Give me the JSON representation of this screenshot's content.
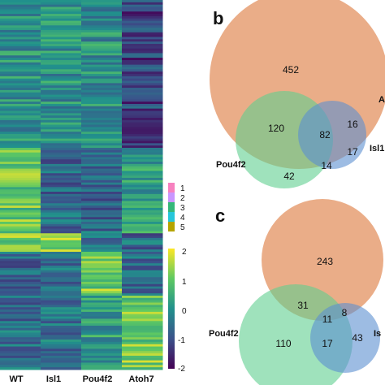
{
  "heatmap": {
    "columns": [
      "WT",
      "Isl1",
      "Pou4f2",
      "Atoh7"
    ],
    "clusters": [
      {
        "label": "1",
        "color": "#f781bf"
      },
      {
        "label": "2",
        "color": "#c996ff"
      },
      {
        "label": "3",
        "color": "#35b779"
      },
      {
        "label": "4",
        "color": "#26c6da"
      },
      {
        "label": "5",
        "color": "#b5a400"
      }
    ],
    "colorbar": {
      "ticks": [
        "2",
        "1",
        "0",
        "-1",
        "-2"
      ],
      "range": [
        -2,
        2
      ]
    }
  },
  "panel_b": {
    "letter": "b",
    "labels": {
      "pou4f2": "Pou4f2",
      "isl1": "Isl1",
      "atoh7": "A"
    },
    "regions": {
      "atoh7_only": "452",
      "atoh7_pou4f2": "120",
      "all_three": "82",
      "atoh7_isl1": "16",
      "isl1_only": "17",
      "pou4f2_isl1": "14",
      "pou4f2_only": "42"
    }
  },
  "panel_c": {
    "letter": "c",
    "labels": {
      "pou4f2": "Pou4f2",
      "isl1": "Is"
    },
    "regions": {
      "atoh7_only": "243",
      "atoh7_pou4f2": "31",
      "all_three": "11",
      "atoh7_isl1": "8",
      "isl1_only": "43",
      "pou4f2_isl1": "17",
      "pou4f2_only": "110"
    }
  },
  "colors": {
    "atoh7": "#e8a47b",
    "pou4f2": "#5fcf8f",
    "isl1": "#5b8fd0"
  }
}
